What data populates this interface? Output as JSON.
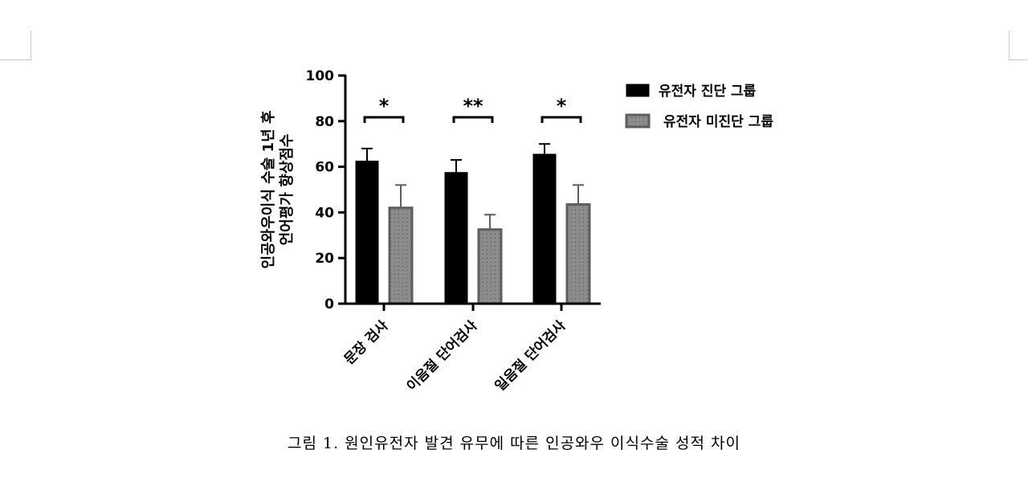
{
  "chart_data": {
    "type": "bar",
    "categories": [
      "문장 검사",
      "이음절 단어검사",
      "일음절 단어검사"
    ],
    "series": [
      {
        "name": "유전자 진단 그룹",
        "values": [
          62.5,
          57.5,
          65.5
        ],
        "errors": [
          5.5,
          5.5,
          4.5
        ],
        "color": "#000000"
      },
      {
        "name": "유전자 미진단 그룹",
        "values": [
          42,
          32.5,
          43.5
        ],
        "errors": [
          10,
          6.5,
          8.5
        ],
        "color": "#8c8c8c"
      }
    ],
    "significance": [
      "*",
      "**",
      "*"
    ],
    "ylabel": [
      "인공와우이식 수술 1년 후",
      "언어평가 향상점수"
    ],
    "ylim": [
      0,
      100
    ],
    "yticks": [
      0,
      20,
      40,
      60,
      80,
      100
    ],
    "legend_position": "top-right"
  },
  "caption": "그림 1. 원인유전자 발견 유무에 따른 인공와우 이식수술 성적 차이"
}
